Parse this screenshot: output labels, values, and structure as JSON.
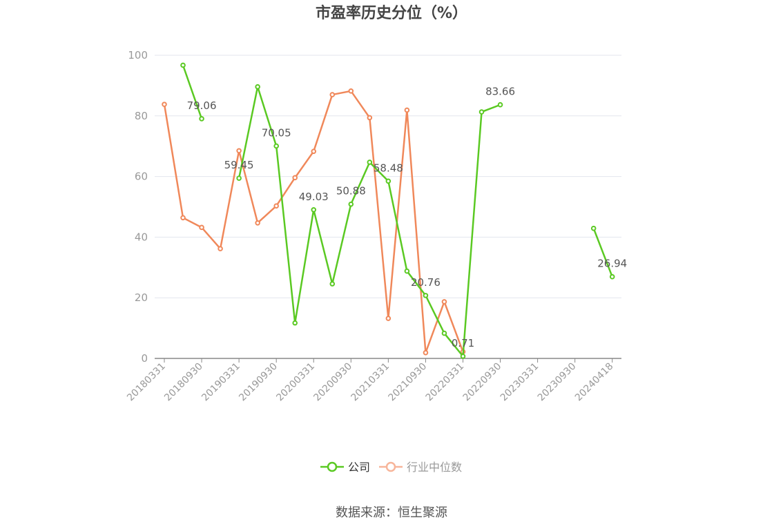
{
  "chart_data": {
    "type": "line",
    "title": "市盈率历史分位（%）",
    "ylim": [
      0,
      100
    ],
    "yticks": [
      0,
      20,
      40,
      60,
      80,
      100
    ],
    "x_points": 25,
    "xtick_labels": [
      {
        "i": 0,
        "label": "20180331"
      },
      {
        "i": 2,
        "label": "20180930"
      },
      {
        "i": 4,
        "label": "20190331"
      },
      {
        "i": 6,
        "label": "20190930"
      },
      {
        "i": 8,
        "label": "20200331"
      },
      {
        "i": 10,
        "label": "20200930"
      },
      {
        "i": 12,
        "label": "20210331"
      },
      {
        "i": 14,
        "label": "20210930"
      },
      {
        "i": 16,
        "label": "20220331"
      },
      {
        "i": 18,
        "label": "20220930"
      },
      {
        "i": 20,
        "label": "20230331"
      },
      {
        "i": 22,
        "label": "20230930"
      },
      {
        "i": 24,
        "label": "20240418"
      }
    ],
    "series": [
      {
        "name": "公司",
        "color": "#5ac922",
        "values": [
          null,
          96.7,
          79.06,
          null,
          59.45,
          89.6,
          70.05,
          11.7,
          49.03,
          24.6,
          50.88,
          64.7,
          58.48,
          28.8,
          20.76,
          8.3,
          0.71,
          81.3,
          83.66,
          null,
          null,
          null,
          null,
          42.9,
          26.94
        ],
        "data_labels": [
          {
            "i": 2,
            "text": "79.06"
          },
          {
            "i": 4,
            "text": "59.45"
          },
          {
            "i": 6,
            "text": "70.05"
          },
          {
            "i": 8,
            "text": "49.03"
          },
          {
            "i": 10,
            "text": "50.88"
          },
          {
            "i": 12,
            "text": "58.48"
          },
          {
            "i": 14,
            "text": "20.76"
          },
          {
            "i": 16,
            "text": "0.71"
          },
          {
            "i": 18,
            "text": "83.66"
          },
          {
            "i": 24,
            "text": "26.94"
          }
        ]
      },
      {
        "name": "行业中位数",
        "color": "#f0885a",
        "values": [
          83.8,
          46.4,
          43.2,
          36.2,
          68.5,
          44.7,
          50.3,
          59.6,
          68.3,
          87.0,
          88.2,
          79.4,
          13.2,
          81.9,
          1.9,
          18.7,
          2.2,
          null,
          null,
          null,
          null,
          null,
          null,
          null,
          null
        ]
      }
    ],
    "legend": {
      "position": "bottom-center",
      "items": [
        {
          "label": "公司",
          "color": "#5ac922",
          "style": "active"
        },
        {
          "label": "行业中位数",
          "color": "#f7b59a",
          "style": "inactive"
        }
      ]
    },
    "grid": true
  },
  "source_text": "数据来源：恒生聚源"
}
